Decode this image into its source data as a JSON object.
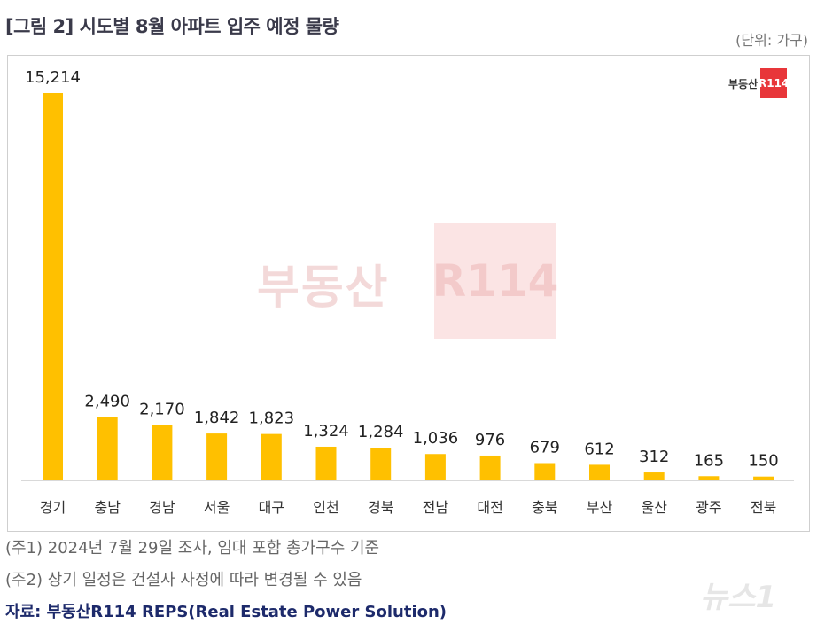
{
  "header": {
    "title": "[그림 2] 시도별 8월 아파트 입주 예정 물량",
    "unit": "(단위: 가구)"
  },
  "logo": {
    "text": "부동산",
    "box": "R114"
  },
  "watermark": {
    "text": "부동산",
    "box": "R114"
  },
  "chart_data": {
    "type": "bar",
    "categories": [
      "경기",
      "충남",
      "경남",
      "서울",
      "대구",
      "인천",
      "경북",
      "전남",
      "대전",
      "충북",
      "부산",
      "울산",
      "광주",
      "전북"
    ],
    "values": [
      15214,
      2490,
      2170,
      1842,
      1823,
      1324,
      1284,
      1036,
      976,
      679,
      612,
      312,
      165,
      150
    ],
    "value_labels": [
      "15,214",
      "2,490",
      "2,170",
      "1,842",
      "1,823",
      "1,324",
      "1,284",
      "1,036",
      "976",
      "679",
      "612",
      "312",
      "165",
      "150"
    ],
    "ylim": [
      0,
      15214
    ],
    "grid": false,
    "color": "#FFC000"
  },
  "notes": {
    "note1": "(주1) 2024년 7월 29일 조사, 임대 포함 총가구수 기준",
    "note2": "(주2) 상기 일정은 건설사 사정에 따라 변경될 수 있음",
    "source": "자료: 부동산R114 REPS(Real Estate Power Solution)"
  },
  "news_mark": "뉴스1"
}
